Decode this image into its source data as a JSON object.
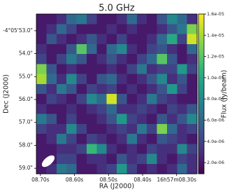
{
  "chart_data": {
    "type": "heatmap",
    "title": "5.0 GHz",
    "x_label": "RA (J2000)",
    "y_label": "Dec (J2000)",
    "colorbar_label": "Flux (Jy/beam)",
    "colormap": "viridis",
    "xlim": [
      8.712,
      8.24
    ],
    "xticks": [
      {
        "value": 8.7,
        "label": "08.70s"
      },
      {
        "value": 8.6,
        "label": "08.60s"
      },
      {
        "value": 8.5,
        "label": "08.50s"
      },
      {
        "value": 8.4,
        "label": "08.40s"
      },
      {
        "value": 8.3,
        "label": "16h57m08.30s"
      }
    ],
    "ylim": [
      52.27,
      59.24
    ],
    "yticks": [
      {
        "value": 53,
        "label": "-4°05'53.0\""
      },
      {
        "value": 54,
        "label": "54.0\""
      },
      {
        "value": 55,
        "label": "55.0\""
      },
      {
        "value": 56,
        "label": "56.0\""
      },
      {
        "value": 57,
        "label": "57.0\""
      },
      {
        "value": 58,
        "label": "58.0\""
      },
      {
        "value": 59,
        "label": "59.0\""
      }
    ],
    "clim": [
      9.5e-07,
      1.6e-05
    ],
    "cticks": [
      {
        "value": 1.6e-05,
        "label": "1.6e-05"
      },
      {
        "value": 1.4e-05,
        "label": "1.4e-05"
      },
      {
        "value": 1.2e-05,
        "label": "1.2e-05"
      },
      {
        "value": 1e-05,
        "label": "1.0e-05"
      },
      {
        "value": 8e-06,
        "label": "8.0e-06"
      },
      {
        "value": 6e-06,
        "label": "6.0e-06"
      },
      {
        "value": 4e-06,
        "label": "4.0e-06"
      },
      {
        "value": 2e-06,
        "label": "2.0e-06"
      }
    ],
    "z": [
      [
        2e-06,
        2e-06,
        3e-06,
        6e-06,
        7e-06,
        4e-06,
        2e-06,
        2e-06,
        3e-06,
        6e-06,
        3e-06,
        2e-06,
        5e-06,
        8e-06,
        6e-06,
        3e-06
      ],
      [
        2e-06,
        3e-06,
        6e-06,
        4e-06,
        2e-06,
        2e-06,
        2e-06,
        3e-06,
        2e-06,
        3e-06,
        2e-06,
        2e-06,
        3e-06,
        5e-06,
        7e-06,
        1.3e-05
      ],
      [
        2e-06,
        5e-06,
        3e-06,
        2e-06,
        3e-06,
        5e-06,
        3e-06,
        2e-06,
        4e-06,
        2e-06,
        2e-06,
        3e-06,
        6e-06,
        1e-05,
        4e-06,
        1.5e-05
      ],
      [
        3e-06,
        2e-06,
        2e-06,
        5e-06,
        1.2e-05,
        6e-06,
        2e-06,
        6e-06,
        8e-06,
        3e-06,
        2e-06,
        4e-06,
        5e-06,
        3e-06,
        2e-06,
        6e-06
      ],
      [
        4e-06,
        2e-06,
        4e-06,
        7e-06,
        5e-06,
        2e-06,
        3e-06,
        5e-06,
        3e-06,
        2e-06,
        4e-06,
        6e-06,
        1.2e-05,
        5e-06,
        2e-06,
        3e-06
      ],
      [
        1.3e-05,
        5e-06,
        2e-06,
        3e-06,
        2e-06,
        2e-06,
        2e-06,
        3e-06,
        2e-06,
        4e-06,
        7e-06,
        3e-06,
        4e-06,
        4e-06,
        9e-06,
        4e-06
      ],
      [
        1.4e-05,
        6e-06,
        3e-06,
        8e-06,
        4e-06,
        2e-06,
        5e-06,
        6e-06,
        3e-06,
        2e-06,
        3e-06,
        5e-06,
        8e-06,
        3e-06,
        5e-06,
        2e-06
      ],
      [
        5e-06,
        3e-06,
        7e-06,
        5e-06,
        2e-06,
        4e-06,
        3e-06,
        4e-06,
        2e-06,
        3e-06,
        2e-06,
        3e-06,
        5e-06,
        9e-06,
        4e-06,
        2e-06
      ],
      [
        2e-06,
        4e-06,
        3e-06,
        2e-06,
        4e-06,
        8e-06,
        6e-06,
        1.5e-05,
        5e-06,
        2e-06,
        3e-06,
        7e-06,
        4e-06,
        3e-06,
        2e-06,
        2e-06
      ],
      [
        3e-06,
        2e-06,
        2e-06,
        3e-06,
        2e-06,
        3e-06,
        4e-06,
        6e-06,
        3e-06,
        3e-06,
        4e-06,
        3e-06,
        2e-06,
        4e-06,
        3e-06,
        5e-06
      ],
      [
        7e-06,
        5e-06,
        2e-06,
        4e-06,
        2e-06,
        2e-06,
        3e-06,
        5e-06,
        9e-06,
        4e-06,
        3e-06,
        2e-06,
        5e-06,
        3e-06,
        5e-06,
        8e-06
      ],
      [
        4e-06,
        3e-06,
        3e-06,
        8e-06,
        4e-06,
        2e-06,
        2e-06,
        3e-06,
        4e-06,
        3e-06,
        7e-06,
        4e-06,
        1.3e-05,
        6e-06,
        3e-06,
        4e-06
      ],
      [
        2e-06,
        3e-06,
        7e-06,
        4e-06,
        2e-06,
        4e-06,
        3e-06,
        2e-06,
        3e-06,
        7e-06,
        3e-06,
        2e-06,
        5e-06,
        4e-06,
        3e-06,
        2e-06
      ],
      [
        2e-06,
        2e-06,
        3e-06,
        3e-06,
        4e-06,
        1.1e-05,
        8e-06,
        3e-06,
        2e-06,
        3e-06,
        2e-06,
        4e-06,
        3e-06,
        3e-06,
        8e-06,
        4e-06
      ],
      [
        2e-06,
        2e-06,
        4e-06,
        4e-06,
        2e-06,
        3e-06,
        3e-06,
        2e-06,
        5e-06,
        3e-06,
        4e-06,
        8e-06,
        3e-06,
        2e-06,
        4e-06,
        3e-06
      ],
      [
        2e-06,
        3e-06,
        7e-06,
        6e-06,
        2e-06,
        2e-06,
        3e-06,
        4e-06,
        9e-06,
        4e-06,
        2e-06,
        3e-06,
        2e-06,
        3e-06,
        6e-06,
        3e-06
      ]
    ]
  }
}
